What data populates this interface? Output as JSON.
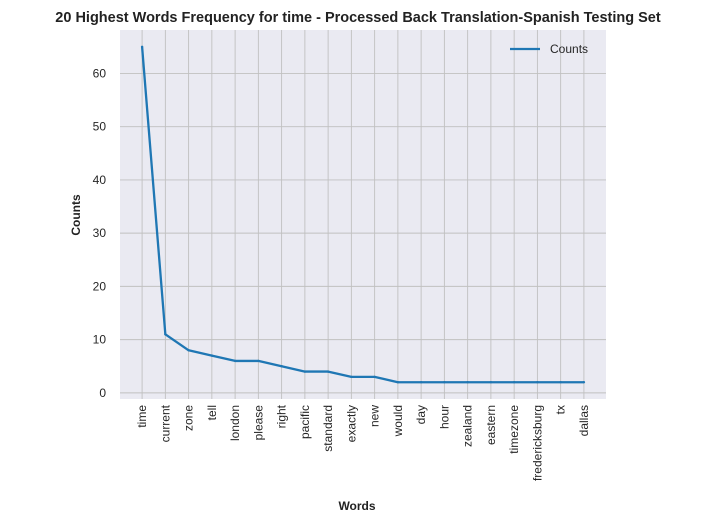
{
  "chart_data": {
    "type": "line",
    "title": "20 Highest Words Frequency for time - Processed Back Translation-Spanish Testing Set",
    "xlabel": "Words",
    "ylabel": "Counts",
    "categories": [
      "time",
      "current",
      "zone",
      "tell",
      "london",
      "please",
      "right",
      "pacific",
      "standard",
      "exactly",
      "new",
      "would",
      "day",
      "hour",
      "zealand",
      "eastern",
      "timezone",
      "fredericksburg",
      "tx",
      "dallas"
    ],
    "series": [
      {
        "name": "Counts",
        "values": [
          65,
          11,
          8,
          7,
          6,
          6,
          5,
          4,
          4,
          3,
          3,
          2,
          2,
          2,
          2,
          2,
          2,
          2,
          2,
          2
        ]
      }
    ],
    "ylim": [
      -1.15,
      68.15
    ],
    "yticks": [
      0,
      10,
      20,
      30,
      40,
      50,
      60
    ],
    "grid": true,
    "legend": "top-right",
    "colors": {
      "line": "#1f77b4",
      "plot_bg": "#eaeaf2",
      "grid": "#c0c0c0"
    }
  }
}
